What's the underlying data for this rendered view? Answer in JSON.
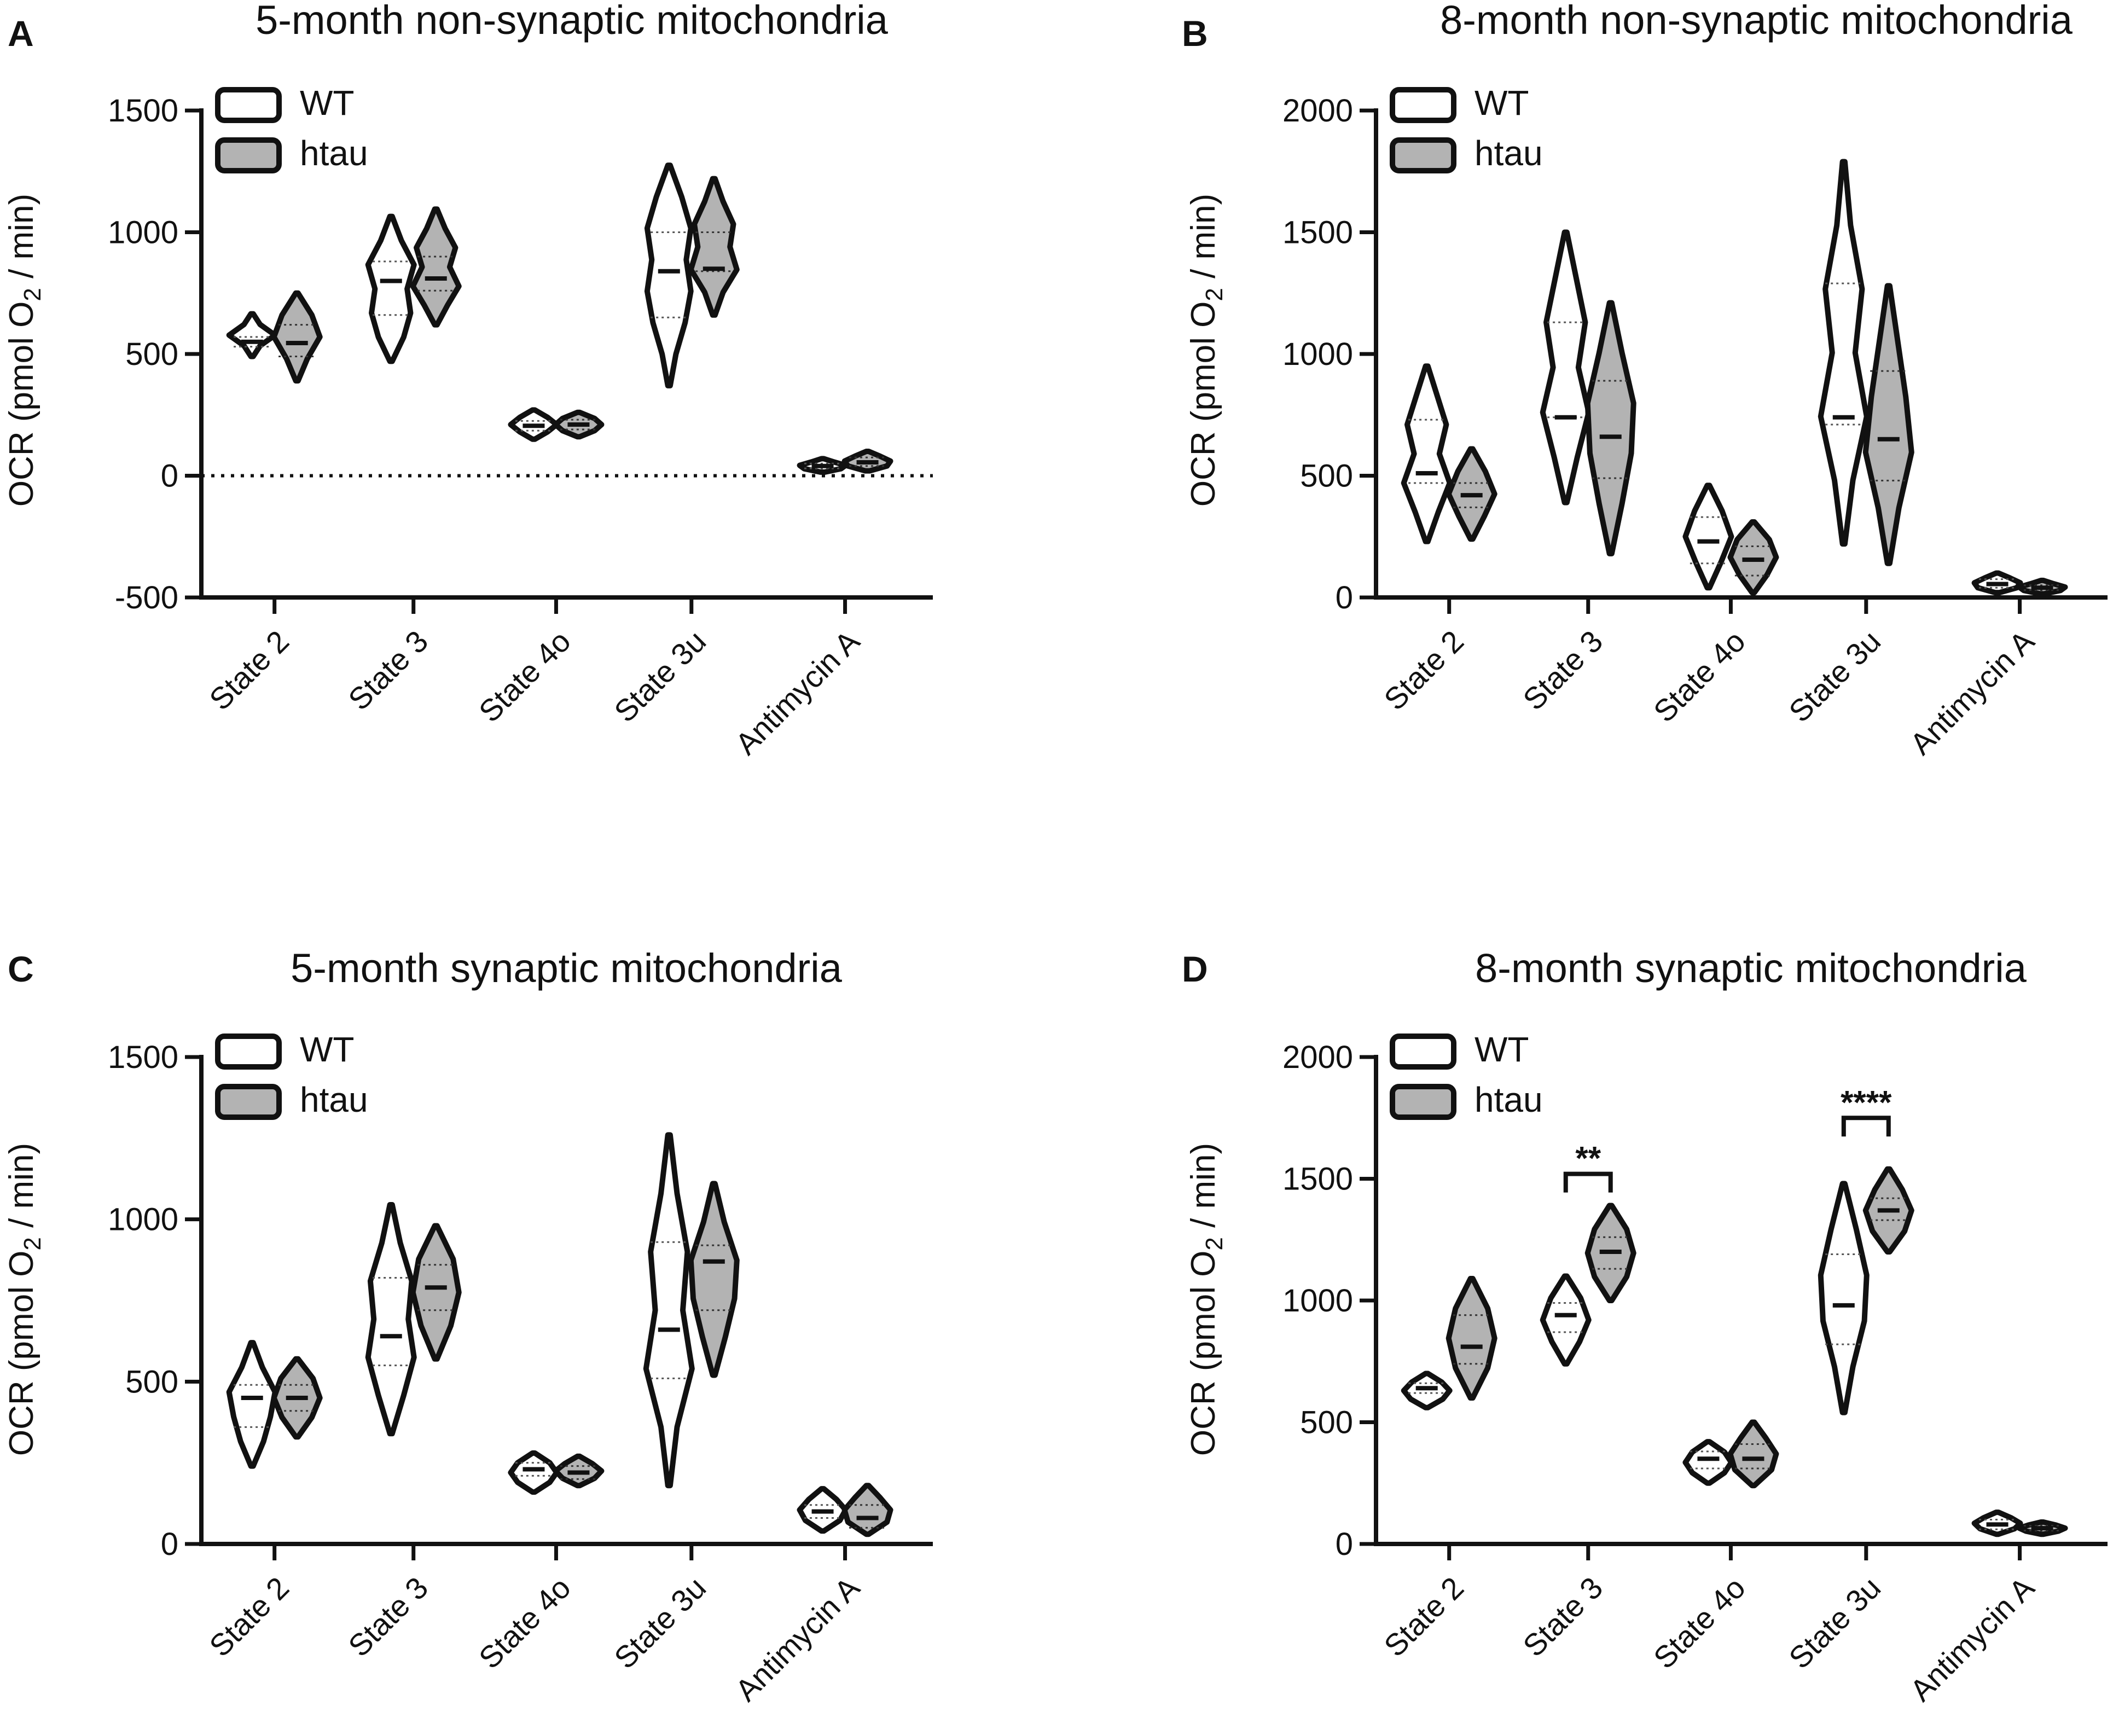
{
  "colors": {
    "wt_fill": "#ffffff",
    "htau_fill": "#b3b3b3",
    "stroke": "#111111"
  },
  "legend": {
    "wt": "WT",
    "htau": "htau"
  },
  "y_axis_label": {
    "main": "OCR (pmol O",
    "sub": "2",
    "tail": " / min)"
  },
  "chart_data": [
    {
      "panel": "A",
      "type": "violin",
      "title": "5-month non-synaptic mitochondria",
      "categories": [
        "State 2",
        "State 3",
        "State 4o",
        "State 3u",
        "Antimycin A"
      ],
      "ylim": [
        -500,
        1500
      ],
      "yticks": [
        -500,
        0,
        500,
        1000,
        1500
      ],
      "zero_line": true,
      "series": [
        {
          "name": "WT",
          "violins": [
            {
              "min": 490,
              "max": 665,
              "median": 550,
              "q1": 530,
              "q3": 570,
              "widths": [
                0.05,
                0.35,
                1.0,
                0.35,
                0.05
              ]
            },
            {
              "min": 470,
              "max": 1065,
              "median": 800,
              "q1": 660,
              "q3": 880,
              "widths": [
                0.05,
                0.55,
                0.85,
                0.7,
                1.0,
                0.45,
                0.05
              ]
            },
            {
              "min": 150,
              "max": 270,
              "median": 205,
              "q1": 185,
              "q3": 225,
              "widths": [
                0.05,
                0.6,
                1.0,
                0.6,
                0.05
              ]
            },
            {
              "min": 370,
              "max": 1275,
              "median": 840,
              "q1": 650,
              "q3": 1000,
              "widths": [
                0.05,
                0.3,
                0.7,
                0.95,
                0.75,
                0.95,
                0.55,
                0.05
              ]
            },
            {
              "min": 15,
              "max": 70,
              "median": 40,
              "q1": 30,
              "q3": 50,
              "widths": [
                0.1,
                0.8,
                1.0,
                0.5,
                0.05
              ]
            }
          ]
        },
        {
          "name": "htau",
          "violins": [
            {
              "min": 390,
              "max": 750,
              "median": 545,
              "q1": 490,
              "q3": 620,
              "widths": [
                0.05,
                0.45,
                1.0,
                0.65,
                0.05
              ]
            },
            {
              "min": 620,
              "max": 1095,
              "median": 810,
              "q1": 760,
              "q3": 900,
              "widths": [
                0.05,
                0.5,
                1.0,
                0.6,
                0.85,
                0.4,
                0.05
              ]
            },
            {
              "min": 160,
              "max": 260,
              "median": 210,
              "q1": 190,
              "q3": 230,
              "widths": [
                0.05,
                0.7,
                1.0,
                0.7,
                0.05
              ]
            },
            {
              "min": 660,
              "max": 1220,
              "median": 850,
              "q1": 840,
              "q3": 1000,
              "widths": [
                0.05,
                0.4,
                1.0,
                0.7,
                0.85,
                0.4,
                0.05
              ]
            },
            {
              "min": 20,
              "max": 100,
              "median": 55,
              "q1": 40,
              "q3": 75,
              "widths": [
                0.1,
                0.85,
                1.0,
                0.55,
                0.05
              ]
            }
          ]
        }
      ],
      "significance": []
    },
    {
      "panel": "B",
      "type": "violin",
      "title": "8-month non-synaptic mitochondria",
      "categories": [
        "State 2",
        "State 3",
        "State 4o",
        "State 3u",
        "Antimycin A"
      ],
      "ylim": [
        0,
        2000
      ],
      "yticks": [
        0,
        500,
        1000,
        1500,
        2000
      ],
      "zero_line": false,
      "series": [
        {
          "name": "WT",
          "violins": [
            {
              "min": 230,
              "max": 950,
              "median": 510,
              "q1": 470,
              "q3": 730,
              "widths": [
                0.05,
                0.5,
                1.0,
                0.55,
                0.85,
                0.45,
                0.05
              ]
            },
            {
              "min": 390,
              "max": 1500,
              "median": 740,
              "q1": 740,
              "q3": 1130,
              "widths": [
                0.05,
                0.5,
                1.0,
                0.55,
                0.85,
                0.45,
                0.05
              ]
            },
            {
              "min": 40,
              "max": 460,
              "median": 230,
              "q1": 140,
              "q3": 330,
              "widths": [
                0.05,
                0.55,
                1.0,
                0.6,
                0.05
              ]
            },
            {
              "min": 220,
              "max": 1790,
              "median": 740,
              "q1": 710,
              "q3": 1290,
              "widths": [
                0.05,
                0.4,
                1.0,
                0.5,
                0.8,
                0.3,
                0.05
              ]
            },
            {
              "min": 20,
              "max": 100,
              "median": 55,
              "q1": 40,
              "q3": 75,
              "widths": [
                0.1,
                0.85,
                1.0,
                0.55,
                0.05
              ]
            }
          ]
        },
        {
          "name": "htau",
          "violins": [
            {
              "min": 240,
              "max": 610,
              "median": 420,
              "q1": 370,
              "q3": 470,
              "widths": [
                0.05,
                0.55,
                1.0,
                0.6,
                0.05
              ]
            },
            {
              "min": 180,
              "max": 1210,
              "median": 660,
              "q1": 490,
              "q3": 890,
              "widths": [
                0.05,
                0.5,
                0.9,
                1.0,
                0.5,
                0.05
              ]
            },
            {
              "min": 20,
              "max": 310,
              "median": 155,
              "q1": 90,
              "q3": 210,
              "widths": [
                0.05,
                0.6,
                1.0,
                0.7,
                0.05
              ]
            },
            {
              "min": 140,
              "max": 1280,
              "median": 650,
              "q1": 480,
              "q3": 930,
              "widths": [
                0.05,
                0.45,
                1.0,
                0.75,
                0.4,
                0.05
              ]
            },
            {
              "min": 15,
              "max": 70,
              "median": 40,
              "q1": 30,
              "q3": 50,
              "widths": [
                0.1,
                0.8,
                1.0,
                0.5,
                0.05
              ]
            }
          ]
        }
      ],
      "significance": []
    },
    {
      "panel": "C",
      "type": "violin",
      "title": "5-month synaptic mitochondria",
      "categories": [
        "State 2",
        "State 3",
        "State 4o",
        "State 3u",
        "Antimycin A"
      ],
      "ylim": [
        0,
        1500
      ],
      "yticks": [
        0,
        500,
        1000,
        1500
      ],
      "zero_line": false,
      "series": [
        {
          "name": "WT",
          "violins": [
            {
              "min": 240,
              "max": 620,
              "median": 450,
              "q1": 360,
              "q3": 490,
              "widths": [
                0.05,
                0.5,
                0.8,
                1.0,
                0.45,
                0.05
              ]
            },
            {
              "min": 340,
              "max": 1045,
              "median": 640,
              "q1": 550,
              "q3": 820,
              "widths": [
                0.05,
                0.55,
                1.0,
                0.75,
                0.9,
                0.4,
                0.05
              ]
            },
            {
              "min": 160,
              "max": 280,
              "median": 230,
              "q1": 210,
              "q3": 250,
              "widths": [
                0.05,
                0.7,
                1.0,
                0.7,
                0.05
              ]
            },
            {
              "min": 180,
              "max": 1260,
              "median": 660,
              "q1": 510,
              "q3": 930,
              "widths": [
                0.05,
                0.35,
                1.0,
                0.6,
                0.8,
                0.35,
                0.05
              ]
            },
            {
              "min": 40,
              "max": 170,
              "median": 100,
              "q1": 80,
              "q3": 120,
              "widths": [
                0.05,
                0.75,
                1.0,
                0.6,
                0.05
              ]
            }
          ]
        },
        {
          "name": "htau",
          "violins": [
            {
              "min": 330,
              "max": 570,
              "median": 450,
              "q1": 410,
              "q3": 490,
              "widths": [
                0.05,
                0.65,
                1.0,
                0.7,
                0.05
              ]
            },
            {
              "min": 570,
              "max": 980,
              "median": 790,
              "q1": 720,
              "q3": 860,
              "widths": [
                0.05,
                0.65,
                1.0,
                0.75,
                0.05
              ]
            },
            {
              "min": 180,
              "max": 270,
              "median": 220,
              "q1": 200,
              "q3": 240,
              "widths": [
                0.05,
                0.7,
                1.0,
                0.6,
                0.05
              ]
            },
            {
              "min": 520,
              "max": 1110,
              "median": 870,
              "q1": 720,
              "q3": 920,
              "widths": [
                0.05,
                0.5,
                0.9,
                1.0,
                0.45,
                0.05
              ]
            },
            {
              "min": 30,
              "max": 180,
              "median": 80,
              "q1": 50,
              "q3": 120,
              "widths": [
                0.05,
                0.85,
                1.0,
                0.55,
                0.05
              ]
            }
          ]
        }
      ],
      "significance": []
    },
    {
      "panel": "D",
      "type": "violin",
      "title": "8-month synaptic mitochondria",
      "categories": [
        "State 2",
        "State 3",
        "State 4o",
        "State 3u",
        "Antimycin A"
      ],
      "ylim": [
        0,
        2000
      ],
      "yticks": [
        0,
        500,
        1000,
        1500,
        2000
      ],
      "zero_line": false,
      "series": [
        {
          "name": "WT",
          "violins": [
            {
              "min": 560,
              "max": 700,
              "median": 640,
              "q1": 620,
              "q3": 660,
              "widths": [
                0.05,
                0.7,
                1.0,
                0.65,
                0.05
              ]
            },
            {
              "min": 740,
              "max": 1100,
              "median": 940,
              "q1": 870,
              "q3": 990,
              "widths": [
                0.05,
                0.6,
                1.0,
                0.65,
                0.05
              ]
            },
            {
              "min": 250,
              "max": 420,
              "median": 350,
              "q1": 310,
              "q3": 380,
              "widths": [
                0.05,
                0.7,
                1.0,
                0.7,
                0.05
              ]
            },
            {
              "min": 540,
              "max": 1480,
              "median": 980,
              "q1": 820,
              "q3": 1190,
              "widths": [
                0.05,
                0.4,
                0.9,
                1.0,
                0.55,
                0.05
              ]
            },
            {
              "min": 40,
              "max": 130,
              "median": 80,
              "q1": 60,
              "q3": 100,
              "widths": [
                0.05,
                0.75,
                1.0,
                0.6,
                0.05
              ]
            }
          ]
        },
        {
          "name": "htau",
          "violins": [
            {
              "min": 600,
              "max": 1090,
              "median": 810,
              "q1": 740,
              "q3": 940,
              "widths": [
                0.05,
                0.7,
                1.0,
                0.7,
                0.05
              ]
            },
            {
              "min": 1000,
              "max": 1390,
              "median": 1200,
              "q1": 1130,
              "q3": 1260,
              "widths": [
                0.05,
                0.7,
                1.0,
                0.7,
                0.05
              ]
            },
            {
              "min": 240,
              "max": 500,
              "median": 350,
              "q1": 310,
              "q3": 410,
              "widths": [
                0.05,
                0.8,
                1.0,
                0.55,
                0.05
              ]
            },
            {
              "min": 1200,
              "max": 1540,
              "median": 1370,
              "q1": 1330,
              "q3": 1420,
              "widths": [
                0.05,
                0.7,
                1.0,
                0.6,
                0.05
              ]
            },
            {
              "min": 40,
              "max": 90,
              "median": 65,
              "q1": 55,
              "q3": 75,
              "widths": [
                0.05,
                0.7,
                1.0,
                0.6,
                0.05
              ]
            }
          ]
        }
      ],
      "significance": [
        {
          "category_index": 1,
          "label": "**",
          "y": 1520
        },
        {
          "category_index": 3,
          "label": "****",
          "y": 1750
        }
      ]
    }
  ]
}
